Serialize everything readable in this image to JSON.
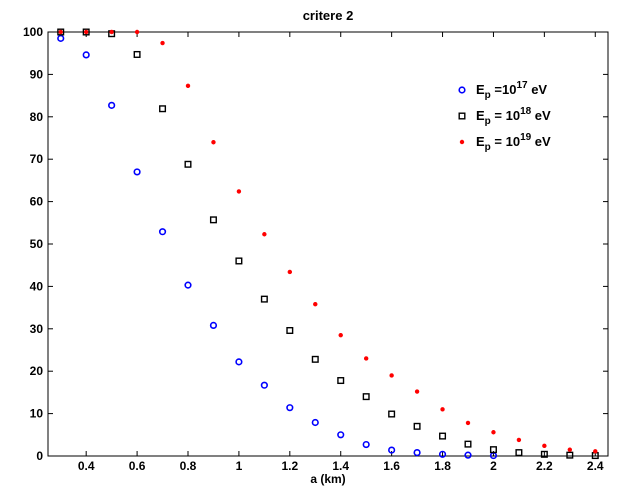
{
  "chart_data": {
    "type": "scatter",
    "title": "critere 2",
    "xlabel": "a (km)",
    "ylabel": "",
    "xlim": [
      0.25,
      2.45
    ],
    "ylim": [
      0,
      100
    ],
    "x_ticks": [
      0.4,
      0.6,
      0.8,
      1,
      1.2,
      1.4,
      1.6,
      1.8,
      2,
      2.2,
      2.4
    ],
    "x_tick_labels": [
      "0.4",
      "0.6",
      "0.8",
      "1",
      "1.2",
      "1.4",
      "1.6",
      "1.8",
      "2",
      "2.2",
      "2.4"
    ],
    "y_ticks": [
      0,
      10,
      20,
      30,
      40,
      50,
      60,
      70,
      80,
      90,
      100
    ],
    "y_tick_labels": [
      "0",
      "10",
      "20",
      "30",
      "40",
      "50",
      "60",
      "70",
      "80",
      "90",
      "100"
    ],
    "grid": false,
    "legend_position": "top-right",
    "series": [
      {
        "name_parts": {
          "base": "E",
          "sub": "p",
          "mid": " =10",
          "sup": "17",
          "tail": " eV"
        },
        "marker": "circle",
        "color": "#0000ff",
        "x": [
          0.3,
          0.4,
          0.5,
          0.6,
          0.7,
          0.8,
          0.9,
          1.0,
          1.1,
          1.2,
          1.3,
          1.4,
          1.5,
          1.6,
          1.7,
          1.8,
          1.9,
          2.0
        ],
        "y": [
          98.5,
          94.6,
          82.7,
          67.0,
          52.9,
          40.3,
          30.8,
          22.2,
          16.7,
          11.4,
          7.9,
          5.0,
          2.7,
          1.4,
          0.8,
          0.4,
          0.2,
          0.1
        ]
      },
      {
        "name_parts": {
          "base": "E",
          "sub": "p",
          "mid": " = 10",
          "sup": "18",
          "tail": " eV"
        },
        "marker": "square",
        "color": "#000000",
        "x": [
          0.3,
          0.4,
          0.5,
          0.6,
          0.7,
          0.8,
          0.9,
          1.0,
          1.1,
          1.2,
          1.3,
          1.4,
          1.5,
          1.6,
          1.7,
          1.8,
          1.9,
          2.0,
          2.1,
          2.2,
          2.3,
          2.4
        ],
        "y": [
          100,
          100,
          99.6,
          94.7,
          81.9,
          68.8,
          55.7,
          46.0,
          37.0,
          29.6,
          22.8,
          17.8,
          14.0,
          9.9,
          7.0,
          4.7,
          2.8,
          1.5,
          0.8,
          0.4,
          0.2,
          0.1
        ]
      },
      {
        "name_parts": {
          "base": "E",
          "sub": "p",
          "mid": " = 10",
          "sup": "19",
          "tail": " eV"
        },
        "marker": "dot",
        "color": "#ff0000",
        "x": [
          0.3,
          0.4,
          0.5,
          0.6,
          0.7,
          0.8,
          0.9,
          1.0,
          1.1,
          1.2,
          1.3,
          1.4,
          1.5,
          1.6,
          1.7,
          1.8,
          1.9,
          2.0,
          2.1,
          2.2,
          2.3,
          2.4
        ],
        "y": [
          100,
          100,
          100,
          100,
          97.4,
          87.3,
          74.0,
          62.4,
          52.3,
          43.4,
          35.8,
          28.5,
          23.0,
          19.0,
          15.2,
          11.0,
          7.8,
          5.6,
          3.8,
          2.4,
          1.5,
          1.1
        ]
      }
    ]
  }
}
